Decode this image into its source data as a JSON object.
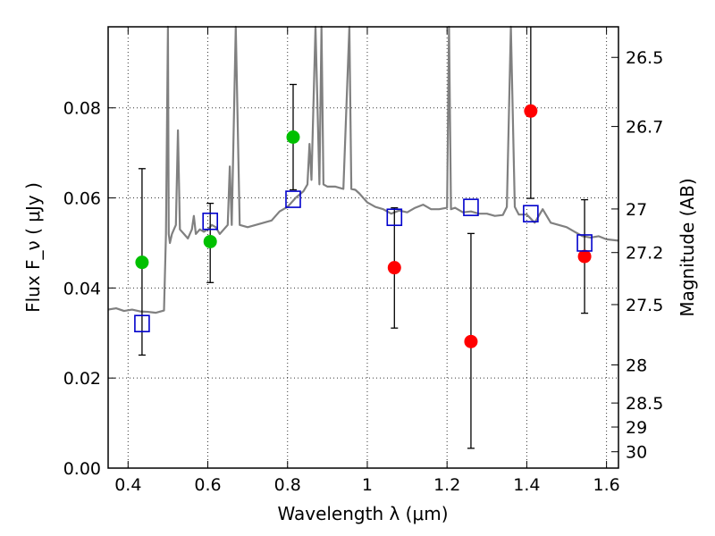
{
  "chart_data": {
    "type": "scatter",
    "xlabel": "Wavelength  λ (μm)",
    "ylabel": "Flux  F_ν  ( μJy )",
    "y2label": "Magnitude (AB)",
    "xlim": [
      0.35,
      1.63
    ],
    "ylim": [
      0.0,
      0.098
    ],
    "grid": true,
    "x_ticks": [
      0.4,
      0.6,
      0.8,
      1.0,
      1.2,
      1.4,
      1.6
    ],
    "x_tick_labels": [
      "0.4",
      "0.6",
      "0.8",
      "1",
      "1.2",
      "1.4",
      "1.6"
    ],
    "y_ticks": [
      0.0,
      0.02,
      0.04,
      0.06,
      0.08
    ],
    "y_tick_labels": [
      "0.00",
      "0.02",
      "0.04",
      "0.06",
      "0.08"
    ],
    "y2_ticks": [
      "26.5",
      "26.7",
      "27",
      "27.2",
      "27.5",
      "28",
      "28.5",
      "29",
      "30"
    ],
    "colors": {
      "spectrum": "#808080",
      "green_points": "#00c000",
      "red_points": "#ff0000",
      "model_boxes": "#0000cc",
      "errorbars": "#000000"
    },
    "series": [
      {
        "marker": "circle-green",
        "points": [
          {
            "x": 0.435,
            "y": 0.0457
          },
          {
            "x": 0.606,
            "y": 0.0503
          },
          {
            "x": 0.814,
            "y": 0.0735
          }
        ]
      },
      {
        "marker": "circle-red",
        "points": [
          {
            "x": 1.068,
            "y": 0.0445
          },
          {
            "x": 1.26,
            "y": 0.0281
          },
          {
            "x": 1.41,
            "y": 0.0793
          },
          {
            "x": 1.545,
            "y": 0.047
          }
        ]
      },
      {
        "marker": "errorbar",
        "points": [
          {
            "x": 0.435,
            "ylo": 0.0251,
            "yhi": 0.0665
          },
          {
            "x": 0.606,
            "ylo": 0.0412,
            "yhi": 0.0588
          },
          {
            "x": 0.814,
            "ylo": 0.0618,
            "yhi": 0.0852
          },
          {
            "x": 1.068,
            "ylo": 0.0311,
            "yhi": 0.0578
          },
          {
            "x": 1.26,
            "ylo": 0.0044,
            "yhi": 0.0521
          },
          {
            "x": 1.41,
            "ylo": 0.0599,
            "yhi": 0.098
          },
          {
            "x": 1.545,
            "ylo": 0.0344,
            "yhi": 0.0596
          }
        ]
      },
      {
        "marker": "open-square-blue",
        "points": [
          {
            "x": 0.435,
            "y": 0.0321
          },
          {
            "x": 0.606,
            "y": 0.0548
          },
          {
            "x": 0.814,
            "y": 0.0597
          },
          {
            "x": 1.068,
            "y": 0.0557
          },
          {
            "x": 1.26,
            "y": 0.0579
          },
          {
            "x": 1.41,
            "y": 0.0565
          },
          {
            "x": 1.545,
            "y": 0.05
          }
        ]
      },
      {
        "marker": "line-grey",
        "x": [
          0.35,
          0.37,
          0.39,
          0.41,
          0.43,
          0.45,
          0.47,
          0.49,
          0.495,
          0.5,
          0.502,
          0.505,
          0.51,
          0.515,
          0.52,
          0.525,
          0.53,
          0.54,
          0.55,
          0.56,
          0.565,
          0.57,
          0.58,
          0.59,
          0.6,
          0.61,
          0.62,
          0.63,
          0.64,
          0.65,
          0.655,
          0.66,
          0.67,
          0.68,
          0.7,
          0.72,
          0.74,
          0.76,
          0.78,
          0.8,
          0.82,
          0.84,
          0.85,
          0.855,
          0.86,
          0.87,
          0.88,
          0.885,
          0.89,
          0.9,
          0.92,
          0.94,
          0.955,
          0.96,
          0.97,
          0.98,
          1.0,
          1.02,
          1.04,
          1.06,
          1.08,
          1.1,
          1.12,
          1.14,
          1.16,
          1.18,
          1.2,
          1.205,
          1.21,
          1.22,
          1.24,
          1.26,
          1.28,
          1.3,
          1.32,
          1.34,
          1.35,
          1.36,
          1.37,
          1.38,
          1.4,
          1.42,
          1.44,
          1.46,
          1.48,
          1.5,
          1.52,
          1.54,
          1.56,
          1.58,
          1.6,
          1.63
        ],
        "y": [
          0.0352,
          0.0355,
          0.0349,
          0.0352,
          0.0348,
          0.0347,
          0.0345,
          0.035,
          0.052,
          0.098,
          0.052,
          0.05,
          0.052,
          0.053,
          0.054,
          0.075,
          0.053,
          0.052,
          0.051,
          0.053,
          0.056,
          0.052,
          0.053,
          0.0525,
          0.053,
          0.054,
          0.0535,
          0.052,
          0.053,
          0.054,
          0.067,
          0.054,
          0.098,
          0.054,
          0.0535,
          0.054,
          0.0545,
          0.055,
          0.057,
          0.058,
          0.06,
          0.0615,
          0.063,
          0.072,
          0.064,
          0.098,
          0.063,
          0.098,
          0.063,
          0.0625,
          0.0625,
          0.062,
          0.098,
          0.062,
          0.0618,
          0.061,
          0.059,
          0.058,
          0.0575,
          0.0565,
          0.0572,
          0.0568,
          0.0578,
          0.0585,
          0.0575,
          0.0575,
          0.0578,
          0.098,
          0.0575,
          0.0578,
          0.0568,
          0.057,
          0.0565,
          0.0565,
          0.056,
          0.0562,
          0.058,
          0.098,
          0.058,
          0.0563,
          0.0563,
          0.0545,
          0.0575,
          0.0545,
          0.054,
          0.0535,
          0.0525,
          0.0515,
          0.0512,
          0.0515,
          0.0508,
          0.0505
        ]
      }
    ]
  }
}
